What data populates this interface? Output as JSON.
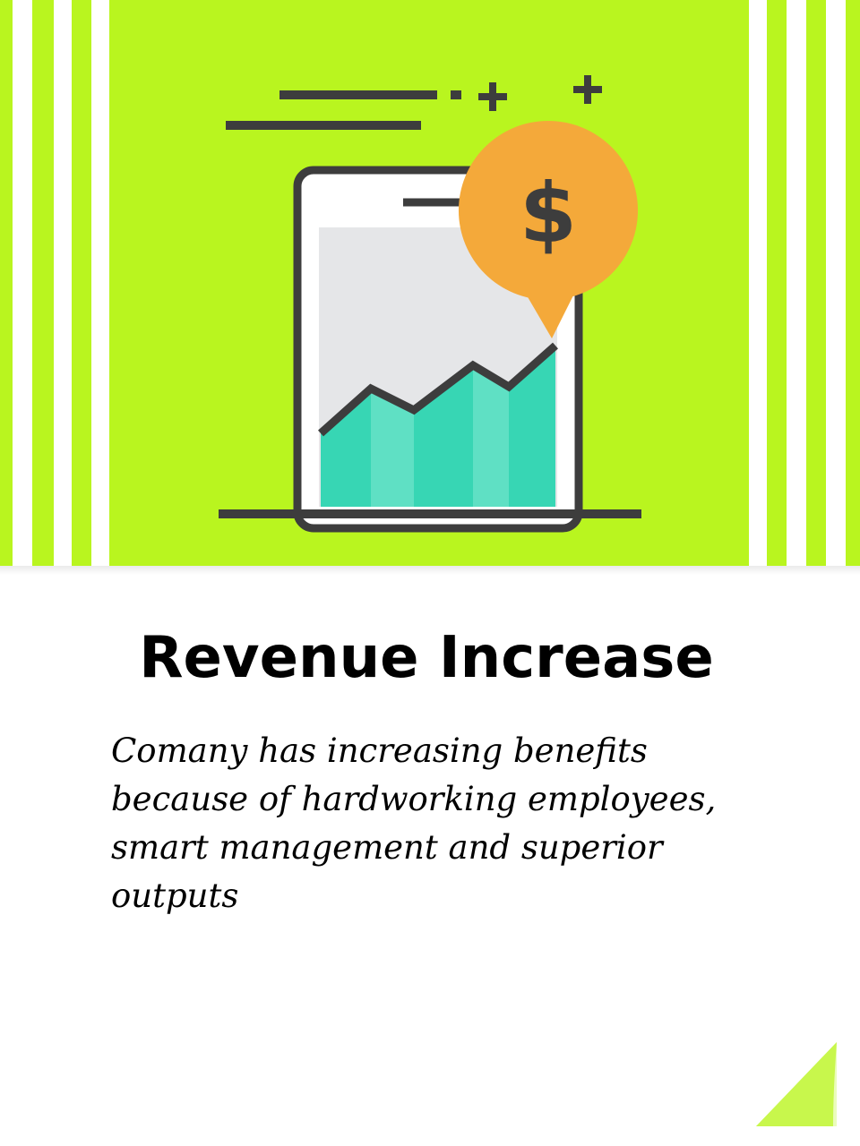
{
  "hero": {
    "icon": "revenue-growth-phone-icon",
    "badge_icon": "dollar-sign-icon",
    "colors": {
      "background": "#b9f51f",
      "stripe": "#ffffff",
      "outline": "#3d3d3d",
      "screen": "#e5e6e8",
      "chart_fill": "#37d6b4",
      "chart_fill_light": "#5fe0c4",
      "badge": "#f4a93a"
    }
  },
  "card": {
    "title": "Revenue Increase",
    "description": "Comany has increasing benefits because of hardworking employees, smart management and superior outputs"
  },
  "corner": {
    "icon": "page-curl-icon",
    "color": "#b9f51f"
  }
}
